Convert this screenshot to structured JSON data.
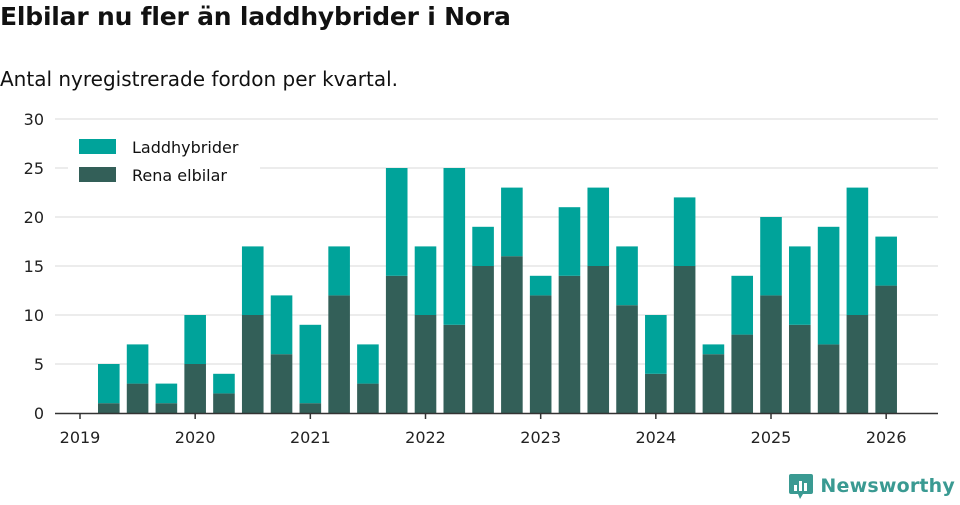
{
  "header": {
    "title": "Elbilar nu fler än laddhybrider i Nora",
    "subtitle": "Antal nyregistrerade fordon per kvartal."
  },
  "brand": {
    "name": "Newsworthy"
  },
  "colors": {
    "phev": "#00a39a",
    "bev": "#335f58",
    "grid": "#d9d9d9",
    "axis": "#333333",
    "brand": "#3a9a92"
  },
  "chart_data": {
    "type": "bar",
    "stacked": true,
    "title": "Elbilar nu fler än laddhybrider i Nora",
    "subtitle": "Antal nyregistrerade fordon per kvartal.",
    "xlabel": "",
    "ylabel": "",
    "ylim": [
      0,
      30
    ],
    "yticks": [
      0,
      5,
      10,
      15,
      20,
      25,
      30
    ],
    "xlim": [
      2019.0,
      2026.45
    ],
    "xticks": [
      {
        "value": 2019,
        "label": "2019"
      },
      {
        "value": 2020,
        "label": "2020"
      },
      {
        "value": 2021,
        "label": "2021"
      },
      {
        "value": 2022,
        "label": "2022"
      },
      {
        "value": 2023,
        "label": "2023"
      },
      {
        "value": 2024,
        "label": "2024"
      },
      {
        "value": 2025,
        "label": "2025"
      },
      {
        "value": 2026,
        "label": "2026"
      }
    ],
    "legend_position": "top-left",
    "categories": [
      "2019 Q2",
      "2019 Q3",
      "2019 Q4",
      "2020 Q1",
      "2020 Q2",
      "2020 Q3",
      "2020 Q4",
      "2021 Q1",
      "2021 Q2",
      "2021 Q3",
      "2021 Q4",
      "2022 Q1",
      "2022 Q2",
      "2022 Q3",
      "2022 Q4",
      "2023 Q1",
      "2023 Q2",
      "2023 Q3",
      "2023 Q4",
      "2024 Q1",
      "2024 Q2",
      "2024 Q3",
      "2024 Q4",
      "2025 Q1",
      "2025 Q2",
      "2025 Q3",
      "2025 Q4",
      "2026 Q1"
    ],
    "x": [
      2019.25,
      2019.5,
      2019.75,
      2020.0,
      2020.25,
      2020.5,
      2020.75,
      2021.0,
      2021.25,
      2021.5,
      2021.75,
      2022.0,
      2022.25,
      2022.5,
      2022.75,
      2023.0,
      2023.25,
      2023.5,
      2023.75,
      2024.0,
      2024.25,
      2024.5,
      2024.75,
      2025.0,
      2025.25,
      2025.5,
      2025.75,
      2026.0
    ],
    "series": [
      {
        "name": "Rena elbilar",
        "color": "#335f58",
        "values": [
          1,
          3,
          1,
          5,
          2,
          10,
          6,
          1,
          12,
          3,
          14,
          10,
          9,
          15,
          16,
          12,
          14,
          15,
          11,
          4,
          15,
          6,
          8,
          12,
          9,
          7,
          10,
          13
        ]
      },
      {
        "name": "Laddhybrider",
        "color": "#00a39a",
        "values": [
          4,
          4,
          2,
          5,
          2,
          7,
          6,
          8,
          5,
          4,
          11,
          7,
          16,
          4,
          7,
          2,
          7,
          8,
          6,
          6,
          7,
          1,
          6,
          8,
          8,
          12,
          13,
          5
        ]
      }
    ],
    "legend": [
      "Laddhybrider",
      "Rena elbilar"
    ]
  }
}
